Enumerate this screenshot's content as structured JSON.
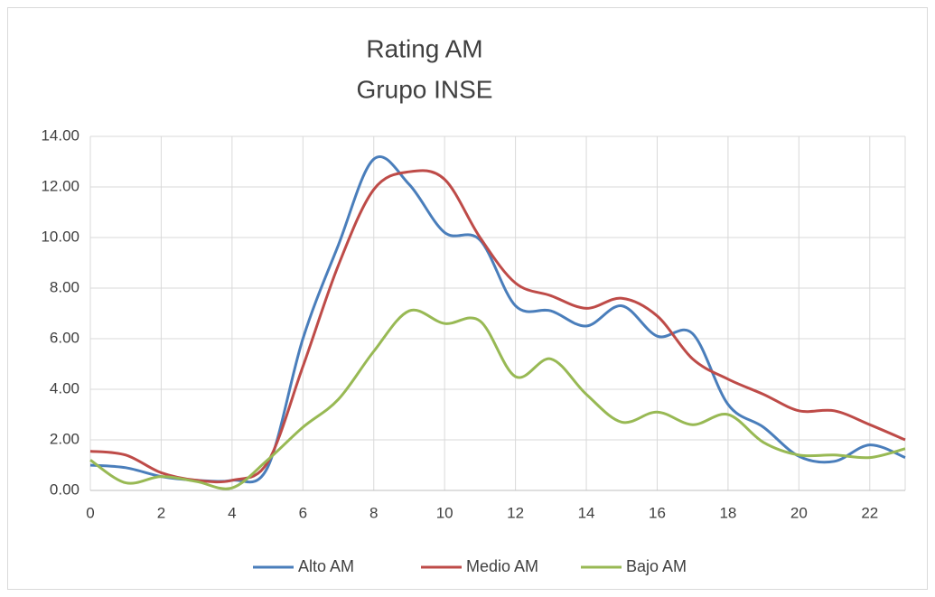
{
  "chart_data": {
    "type": "line",
    "title": "Rating AM",
    "subtitle": "Grupo INSE",
    "x": [
      0,
      1,
      2,
      3,
      4,
      5,
      6,
      7,
      8,
      9,
      10,
      11,
      12,
      13,
      14,
      15,
      16,
      17,
      18,
      19,
      20,
      21,
      22,
      23
    ],
    "series": [
      {
        "name": "Alto AM",
        "color": "#4a7ebb",
        "values": [
          1.0,
          0.9,
          0.55,
          0.4,
          0.4,
          0.9,
          6.0,
          9.7,
          13.1,
          12.1,
          10.2,
          9.9,
          7.3,
          7.1,
          6.5,
          7.3,
          6.1,
          6.2,
          3.4,
          2.5,
          1.35,
          1.15,
          1.8,
          1.3
        ]
      },
      {
        "name": "Medio AM",
        "color": "#be4b48",
        "values": [
          1.55,
          1.4,
          0.7,
          0.4,
          0.4,
          1.1,
          4.9,
          8.9,
          11.9,
          12.6,
          12.3,
          10.0,
          8.2,
          7.7,
          7.2,
          7.6,
          6.9,
          5.2,
          4.4,
          3.8,
          3.15,
          3.15,
          2.6,
          2.0
        ]
      },
      {
        "name": "Bajo AM",
        "color": "#98b954",
        "values": [
          1.2,
          0.3,
          0.55,
          0.35,
          0.1,
          1.2,
          2.5,
          3.6,
          5.5,
          7.1,
          6.6,
          6.7,
          4.5,
          5.2,
          3.8,
          2.7,
          3.1,
          2.6,
          3.0,
          1.9,
          1.4,
          1.4,
          1.3,
          1.65
        ]
      }
    ],
    "xlim": [
      0,
      23
    ],
    "xticks": [
      0,
      2,
      4,
      6,
      8,
      10,
      12,
      14,
      16,
      18,
      20,
      22
    ],
    "ylim": [
      0,
      14
    ],
    "yticks": [
      {
        "value": 0,
        "label": "0.00"
      },
      {
        "value": 2,
        "label": "2.00"
      },
      {
        "value": 4,
        "label": "4.00"
      },
      {
        "value": 6,
        "label": "6.00"
      },
      {
        "value": 8,
        "label": "8.00"
      },
      {
        "value": 10,
        "label": "10.00"
      },
      {
        "value": 12,
        "label": "12.00"
      },
      {
        "value": 14,
        "label": "14.00"
      }
    ],
    "grid": true,
    "legend": "bottom"
  }
}
